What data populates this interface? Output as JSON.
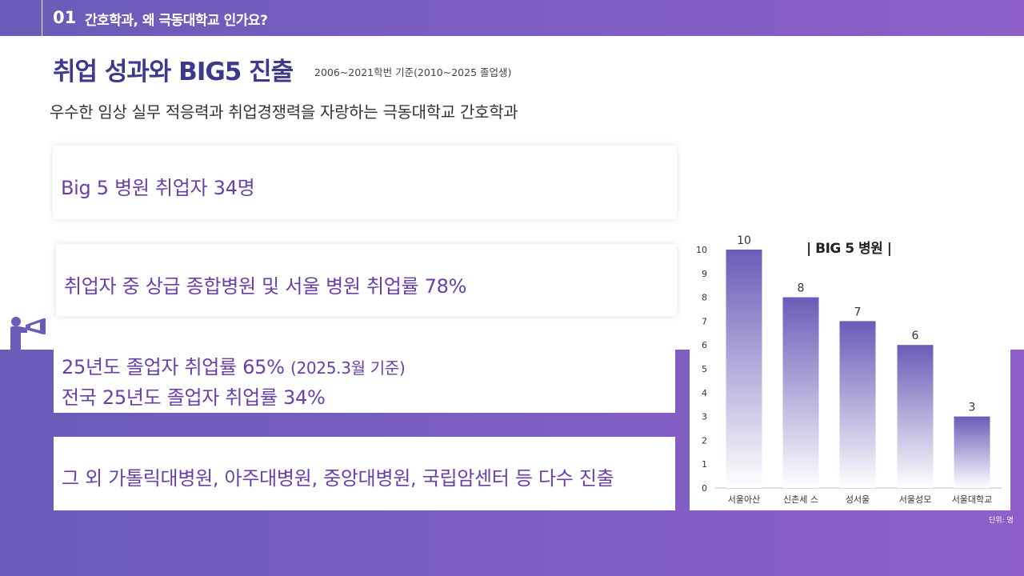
{
  "header": {
    "number": "01",
    "section_title": "간호학과, 왜 극동대학교 인가요?"
  },
  "main": {
    "title": "취업 성과와 BIG5 진출",
    "title_note": "2006~2021학번 기준(2010~2025 졸업생)",
    "subtitle": "우수한 임상 실무 적응력과 취업경쟁력을 자랑하는 극동대학교 간호학과"
  },
  "boxes": {
    "box1": "Big 5 병원 취업자 34명",
    "box2": "취업자 중 상급 종합병원 및 서울 병원 취업률 78%",
    "box3_line1": "25년도 졸업자 취업률 65%",
    "box3_line1_note": "(2025.3월 기준)",
    "box3_line2": "전국 25년도 졸업자 취업률 34%",
    "box4": "그 외 가톨릭대병원, 아주대병원, 중앙대병원, 국립암센터 등 다수 진출"
  },
  "icons": {
    "megaphone": "megaphone-person-icon"
  },
  "colors": {
    "accent_dark": "#3d3a8c",
    "accent_text": "#6a3fa8",
    "band_start": "#6a5cb8",
    "band_end": "#8e5fc8",
    "bar_top": "#6a5cb8"
  },
  "chart_data": {
    "type": "bar",
    "title": "| BIG 5 병원 |",
    "unit_note": "단위: 명",
    "categories": [
      "서울아산",
      "신촌세 스",
      "성서울",
      "서울성모",
      "서울대학교"
    ],
    "values": [
      10,
      8,
      7,
      6,
      3
    ],
    "yticks": [
      "0",
      "1",
      "2",
      "3",
      "4",
      "5",
      "6",
      "7",
      "8",
      "9",
      "10"
    ],
    "ylim": [
      0,
      10
    ],
    "grid": false
  }
}
